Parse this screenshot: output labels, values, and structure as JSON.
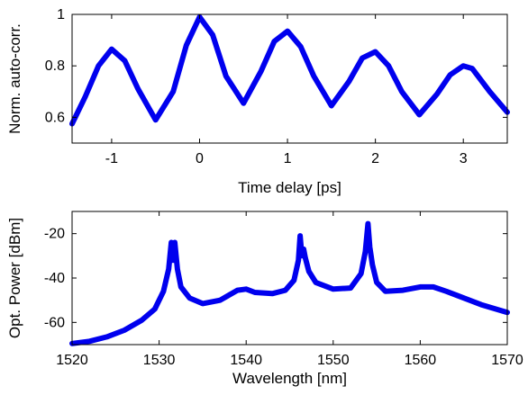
{
  "chart_data": [
    {
      "type": "line",
      "xlabel": "Time delay [ps]",
      "ylabel": "Norm. auto-corr.",
      "xlim": [
        -1.45,
        3.5
      ],
      "ylim": [
        0.5,
        1.0
      ],
      "xticks": [
        -1,
        0,
        1,
        2,
        3
      ],
      "xtick_labels": [
        "-1",
        "0",
        "1",
        "2",
        "3"
      ],
      "yticks": [
        0.6,
        0.8,
        1.0
      ],
      "ytick_labels": [
        "0.6",
        "0.8",
        "1"
      ],
      "grid": false,
      "color": "#0000ee",
      "series": [
        {
          "x": [
            -1.45,
            -1.3,
            -1.15,
            -1.0,
            -0.85,
            -0.7,
            -0.5,
            -0.3,
            -0.15,
            0.0,
            0.15,
            0.3,
            0.5,
            0.7,
            0.85,
            1.0,
            1.15,
            1.3,
            1.5,
            1.7,
            1.85,
            2.0,
            2.15,
            2.3,
            2.5,
            2.7,
            2.85,
            3.0,
            3.1,
            3.3,
            3.5
          ],
          "y": [
            0.575,
            0.68,
            0.8,
            0.865,
            0.82,
            0.71,
            0.59,
            0.7,
            0.88,
            0.99,
            0.92,
            0.76,
            0.655,
            0.78,
            0.895,
            0.935,
            0.875,
            0.76,
            0.645,
            0.74,
            0.83,
            0.855,
            0.8,
            0.7,
            0.61,
            0.69,
            0.765,
            0.8,
            0.79,
            0.7,
            0.62
          ]
        }
      ]
    },
    {
      "type": "line",
      "xlabel": "Wavelength [nm]",
      "ylabel": "Opt. Power [dBm]",
      "xlim": [
        1520,
        1570
      ],
      "ylim": [
        -70,
        -10
      ],
      "xticks": [
        1520,
        1530,
        1540,
        1550,
        1560,
        1570
      ],
      "xtick_labels": [
        "1520",
        "1530",
        "1540",
        "1550",
        "1560",
        "1570"
      ],
      "yticks": [
        -60,
        -40,
        -20
      ],
      "ytick_labels": [
        "-60",
        "-40",
        "-20"
      ],
      "grid": false,
      "color": "#0000ee",
      "series": [
        {
          "x": [
            1520,
            1522,
            1524,
            1526,
            1528,
            1529.5,
            1530.5,
            1531.1,
            1531.4,
            1531.6,
            1531.8,
            1532.1,
            1532.5,
            1533.5,
            1535,
            1537,
            1539,
            1540,
            1541,
            1543,
            1544.5,
            1545.5,
            1546.0,
            1546.2,
            1546.4,
            1546.6,
            1546.8,
            1547.2,
            1548,
            1550,
            1552,
            1553.2,
            1553.7,
            1554.0,
            1554.2,
            1554.5,
            1555,
            1556,
            1558,
            1560,
            1561.5,
            1563,
            1565,
            1567,
            1570
          ],
          "y": [
            -69.5,
            -68.5,
            -66.5,
            -63.5,
            -59,
            -54,
            -46,
            -36,
            -24,
            -32,
            -24,
            -36,
            -44,
            -49,
            -51.5,
            -50,
            -45.5,
            -45,
            -46.5,
            -47,
            -45.5,
            -41,
            -32,
            -21,
            -30,
            -27,
            -31,
            -37,
            -42,
            -45,
            -44.5,
            -38,
            -28,
            -15.5,
            -26,
            -34,
            -42,
            -46,
            -45.5,
            -44,
            -44,
            -46,
            -49,
            -52,
            -55.5
          ]
        }
      ]
    }
  ]
}
